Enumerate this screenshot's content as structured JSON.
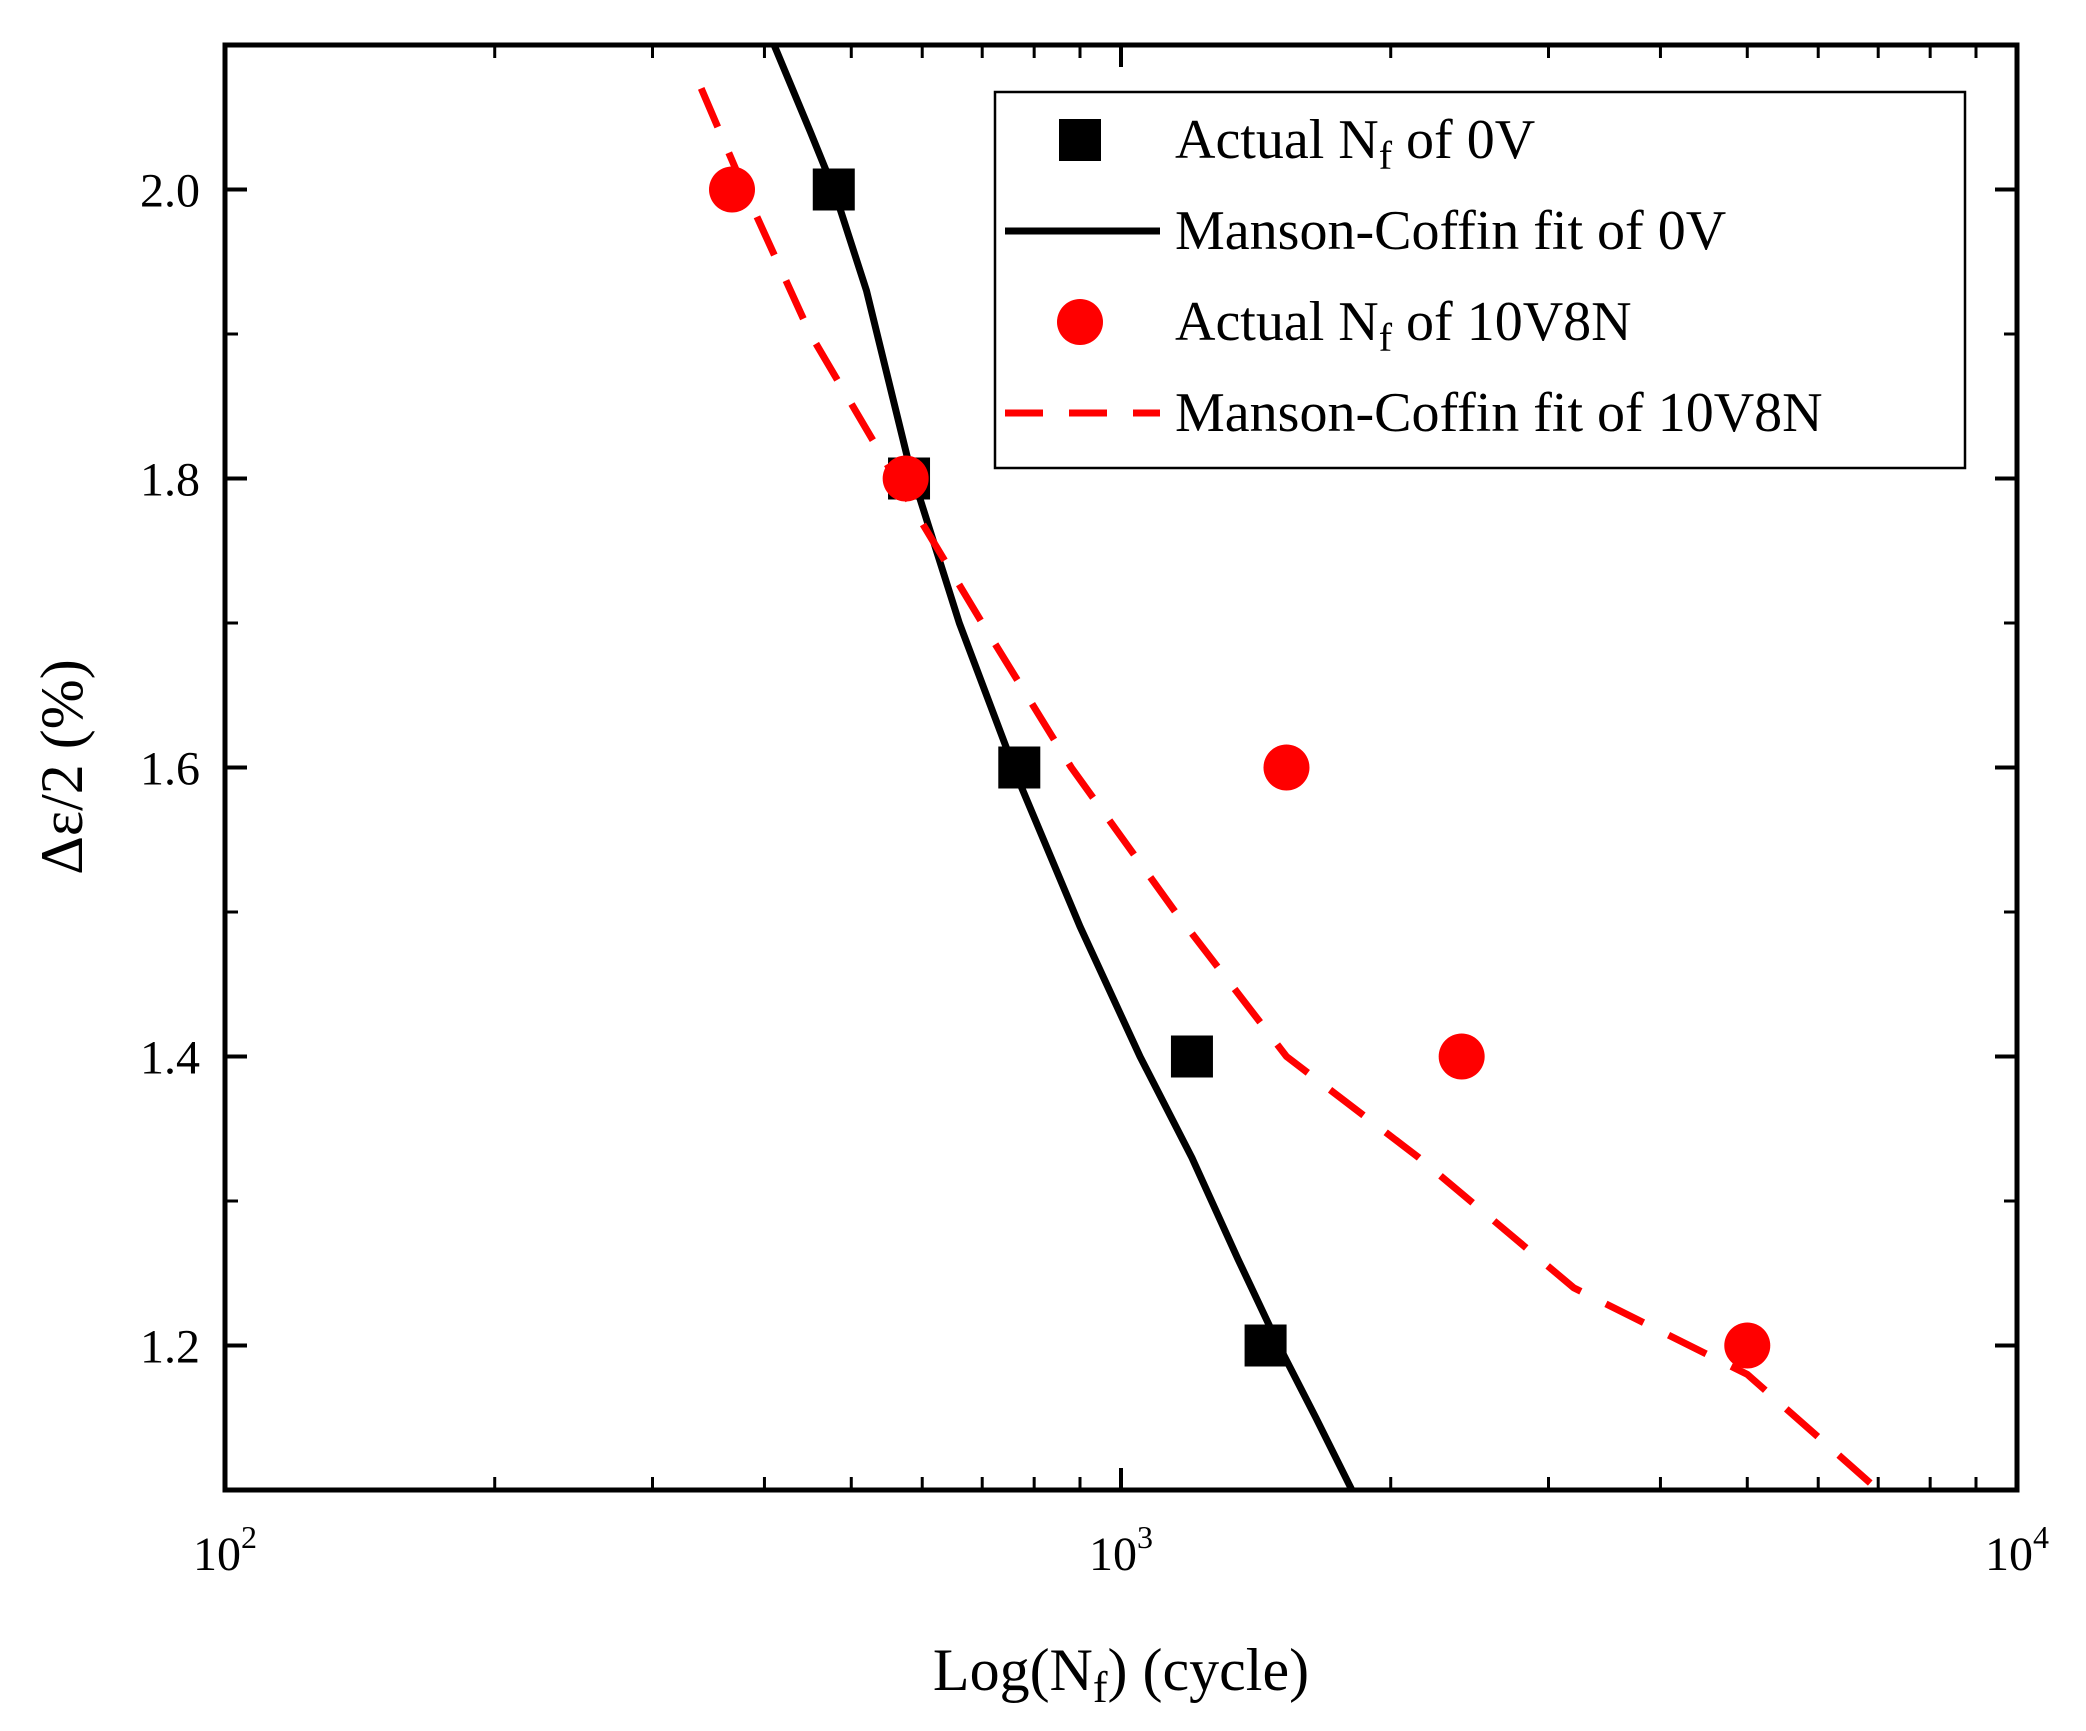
{
  "chart_data": {
    "type": "scatter",
    "x_scale": "log",
    "xlim": [
      100,
      10000
    ],
    "ylim": [
      1.1,
      2.1
    ],
    "xlabel": {
      "base": "Log(N",
      "sub": "f",
      "tail": ") (cycle)"
    },
    "ylabel": "Δε/2 (%)",
    "x_ticks": [
      {
        "value": 100,
        "base": "10",
        "exp": "2"
      },
      {
        "value": 1000,
        "base": "10",
        "exp": "3"
      },
      {
        "value": 10000,
        "base": "10",
        "exp": "4"
      }
    ],
    "y_ticks": [
      {
        "value": 1.2,
        "label": "1.2"
      },
      {
        "value": 1.4,
        "label": "1.4"
      },
      {
        "value": 1.6,
        "label": "1.6"
      },
      {
        "value": 1.8,
        "label": "1.8"
      },
      {
        "value": 2.0,
        "label": "2.0"
      }
    ],
    "y_minor_ticks": [
      1.1,
      1.3,
      1.5,
      1.7,
      1.9,
      2.1
    ],
    "legend_position": "top-right",
    "series": [
      {
        "name": "Actual Nf of 0V",
        "legend": {
          "pre": "Actual N",
          "sub": "f",
          "post": " of 0V"
        },
        "kind": "markers",
        "marker": "square",
        "color": "#000000",
        "points": [
          {
            "x": 478,
            "y": 2.0
          },
          {
            "x": 580,
            "y": 1.8
          },
          {
            "x": 770,
            "y": 1.6
          },
          {
            "x": 1200,
            "y": 1.4
          },
          {
            "x": 1450,
            "y": 1.2
          }
        ]
      },
      {
        "name": "Manson-Coffin fit of 0V",
        "legend": {
          "pre": "Manson-Coffin fit of 0V",
          "sub": "",
          "post": ""
        },
        "kind": "line",
        "dash": "solid",
        "color": "#000000",
        "points": [
          {
            "x": 410,
            "y": 2.1
          },
          {
            "x": 450,
            "y": 2.04
          },
          {
            "x": 478,
            "y": 2.0
          },
          {
            "x": 520,
            "y": 1.93
          },
          {
            "x": 580,
            "y": 1.81
          },
          {
            "x": 660,
            "y": 1.7
          },
          {
            "x": 770,
            "y": 1.59
          },
          {
            "x": 900,
            "y": 1.49
          },
          {
            "x": 1050,
            "y": 1.4
          },
          {
            "x": 1200,
            "y": 1.33
          },
          {
            "x": 1350,
            "y": 1.26
          },
          {
            "x": 1500,
            "y": 1.2
          },
          {
            "x": 1650,
            "y": 1.15
          },
          {
            "x": 1810,
            "y": 1.1
          }
        ]
      },
      {
        "name": "Actual Nf of 10V8N",
        "legend": {
          "pre": "Actual N",
          "sub": "f",
          "post": " of 10V8N"
        },
        "kind": "markers",
        "marker": "circle",
        "color": "#ff0000",
        "points": [
          {
            "x": 368,
            "y": 2.0
          },
          {
            "x": 575,
            "y": 1.8
          },
          {
            "x": 1530,
            "y": 1.6
          },
          {
            "x": 2400,
            "y": 1.4
          },
          {
            "x": 5000,
            "y": 1.2
          }
        ]
      },
      {
        "name": "Manson-Coffin fit of 10V8N",
        "legend": {
          "pre": "Manson-Coffin fit of 10V8N",
          "sub": "",
          "post": ""
        },
        "kind": "line",
        "dash": "dashed",
        "color": "#ff0000",
        "points": [
          {
            "x": 340,
            "y": 2.07
          },
          {
            "x": 380,
            "y": 2.0
          },
          {
            "x": 450,
            "y": 1.9
          },
          {
            "x": 560,
            "y": 1.8
          },
          {
            "x": 700,
            "y": 1.7
          },
          {
            "x": 880,
            "y": 1.6
          },
          {
            "x": 1150,
            "y": 1.5
          },
          {
            "x": 1530,
            "y": 1.4
          },
          {
            "x": 2150,
            "y": 1.33
          },
          {
            "x": 3200,
            "y": 1.24
          },
          {
            "x": 5000,
            "y": 1.18
          },
          {
            "x": 7000,
            "y": 1.1
          }
        ]
      }
    ]
  }
}
